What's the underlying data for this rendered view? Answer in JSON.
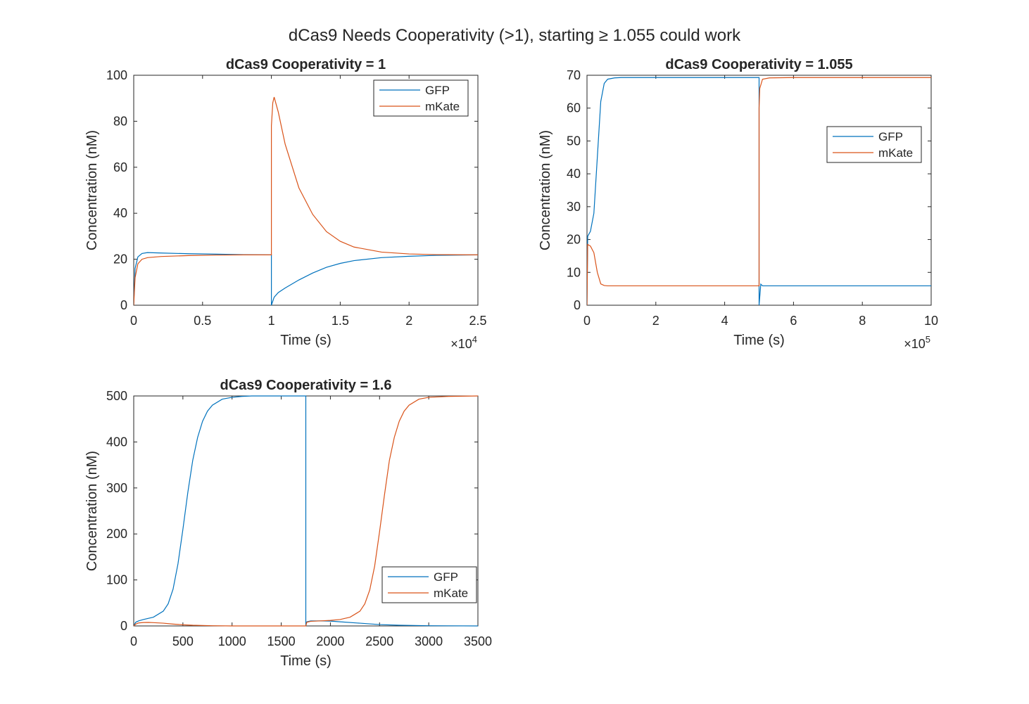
{
  "figure": {
    "suptitle": "dCas9 Needs Cooperativity (>1), starting ≥ 1.055 could work"
  },
  "colors": {
    "gfp": "#0072BD",
    "mkate": "#D95319"
  },
  "chart_data": [
    {
      "type": "line",
      "title": "dCas9 Cooperativity = 1",
      "xlabel": "Time (s)",
      "ylabel": "Concentration (nM)",
      "xlim": [
        0,
        2.5
      ],
      "ylim": [
        0,
        100
      ],
      "x_multiplier": {
        "base": "×10",
        "exponent": "4"
      },
      "xticks": [
        0,
        0.5,
        1,
        1.5,
        2,
        2.5
      ],
      "xtick_labels": [
        "0",
        "0.5",
        "1",
        "1.5",
        "2",
        "2.5"
      ],
      "yticks": [
        0,
        20,
        40,
        60,
        80,
        100
      ],
      "ytick_labels": [
        "0",
        "20",
        "40",
        "60",
        "80",
        "100"
      ],
      "legend_location": "top-right",
      "series": [
        {
          "name": "GFP",
          "x": [
            0,
            0.01,
            0.03,
            0.06,
            0.1,
            0.2,
            0.4,
            0.6,
            0.8,
            0.99,
            1.0,
            1.0,
            1.02,
            1.05,
            1.1,
            1.2,
            1.3,
            1.4,
            1.5,
            1.6,
            1.8,
            2.0,
            2.2,
            2.5
          ],
          "y": [
            0,
            16,
            21,
            22.5,
            22.9,
            22.7,
            22.4,
            22.2,
            22.0,
            21.9,
            21.9,
            0,
            3.5,
            5.5,
            7.5,
            11,
            14,
            16.5,
            18.2,
            19.4,
            20.7,
            21.3,
            21.7,
            21.9
          ]
        },
        {
          "name": "mKate",
          "x": [
            0,
            0.01,
            0.03,
            0.06,
            0.1,
            0.2,
            0.4,
            0.6,
            0.8,
            0.99,
            1.0,
            1.0,
            1.01,
            1.02,
            1.05,
            1.1,
            1.2,
            1.3,
            1.4,
            1.5,
            1.6,
            1.8,
            2.0,
            2.2,
            2.5
          ],
          "y": [
            0,
            12,
            18,
            20,
            20.7,
            21.2,
            21.6,
            21.8,
            21.9,
            21.9,
            21.9,
            78,
            88,
            90.5,
            84,
            70,
            51,
            39.5,
            32,
            27.8,
            25.3,
            23.1,
            22.3,
            22.0,
            21.9
          ]
        }
      ]
    },
    {
      "type": "line",
      "title": "dCas9 Cooperativity = 1.055",
      "xlabel": "Time (s)",
      "ylabel": "Concentration (nM)",
      "xlim": [
        0,
        10
      ],
      "ylim": [
        0,
        70
      ],
      "x_multiplier": {
        "base": "×10",
        "exponent": "5"
      },
      "xticks": [
        0,
        2,
        4,
        6,
        8,
        10
      ],
      "xtick_labels": [
        "0",
        "2",
        "4",
        "6",
        "8",
        "10"
      ],
      "yticks": [
        0,
        10,
        20,
        30,
        40,
        50,
        60,
        70
      ],
      "ytick_labels": [
        "0",
        "10",
        "20",
        "30",
        "40",
        "50",
        "60",
        "70"
      ],
      "legend_location": "right",
      "series": [
        {
          "name": "GFP",
          "x": [
            0,
            0.02,
            0.1,
            0.2,
            0.3,
            0.4,
            0.5,
            0.6,
            0.8,
            1.0,
            2,
            3,
            4,
            4.99,
            5.0,
            5.0,
            5.05,
            5.1,
            6,
            8,
            10
          ],
          "y": [
            0,
            21,
            22.5,
            28,
            45,
            62,
            67.5,
            68.8,
            69.2,
            69.3,
            69.3,
            69.3,
            69.3,
            69.3,
            69.3,
            0,
            6.4,
            5.9,
            5.9,
            5.9,
            5.9
          ]
        },
        {
          "name": "mKate",
          "x": [
            0,
            0.02,
            0.1,
            0.2,
            0.3,
            0.4,
            0.5,
            0.6,
            0.8,
            1.0,
            2,
            3,
            4,
            4.99,
            5.0,
            5.0,
            5.02,
            5.1,
            5.3,
            6,
            8,
            10
          ],
          "y": [
            0,
            18.5,
            18,
            16,
            10,
            6.5,
            6.0,
            5.9,
            5.9,
            5.9,
            5.9,
            5.9,
            5.9,
            5.9,
            5.9,
            60,
            66,
            68.8,
            69.2,
            69.3,
            69.3,
            69.3
          ]
        }
      ]
    },
    {
      "type": "line",
      "title": "dCas9 Cooperativity = 1.6",
      "xlabel": "Time (s)",
      "ylabel": "Concentration (nM)",
      "xlim": [
        0,
        3500
      ],
      "ylim": [
        0,
        500
      ],
      "xticks": [
        0,
        500,
        1000,
        1500,
        2000,
        2500,
        3000,
        3500
      ],
      "xtick_labels": [
        "0",
        "500",
        "1000",
        "1500",
        "2000",
        "2500",
        "3000",
        "3500"
      ],
      "yticks": [
        0,
        100,
        200,
        300,
        400,
        500
      ],
      "ytick_labels": [
        "0",
        "100",
        "200",
        "300",
        "400",
        "500"
      ],
      "legend_location": "bottom-right",
      "series": [
        {
          "name": "GFP",
          "x": [
            0,
            20,
            50,
            100,
            200,
            300,
            350,
            400,
            450,
            500,
            550,
            600,
            650,
            700,
            750,
            800,
            900,
            1000,
            1100,
            1200,
            1400,
            1600,
            1749,
            1750,
            1750,
            1760,
            1800,
            1900,
            2000,
            2100,
            2300,
            2500,
            2700,
            3000,
            3500
          ],
          "y": [
            0,
            8,
            11,
            14,
            19,
            32,
            48,
            80,
            135,
            210,
            290,
            360,
            410,
            445,
            467,
            480,
            493,
            497,
            499,
            500,
            500,
            500,
            500,
            500,
            0,
            9,
            11,
            11,
            10.5,
            9,
            6,
            3,
            1.5,
            0.5,
            0
          ]
        },
        {
          "name": "mKate",
          "x": [
            0,
            20,
            50,
            100,
            150,
            200,
            300,
            400,
            500,
            600,
            800,
            1000,
            1400,
            1749,
            1750,
            1750,
            1760,
            1800,
            1900,
            2000,
            2100,
            2200,
            2300,
            2350,
            2400,
            2450,
            2500,
            2550,
            2600,
            2650,
            2700,
            2750,
            2800,
            2900,
            3000,
            3200,
            3500
          ],
          "y": [
            0,
            4,
            6.5,
            7.5,
            7.6,
            7.2,
            6,
            4,
            2.5,
            1.5,
            0.5,
            0,
            0,
            0,
            0,
            0,
            8,
            10,
            11,
            12,
            14,
            19,
            32,
            48,
            78,
            130,
            205,
            285,
            360,
            410,
            445,
            467,
            480,
            493,
            497,
            499,
            500
          ]
        }
      ]
    }
  ]
}
